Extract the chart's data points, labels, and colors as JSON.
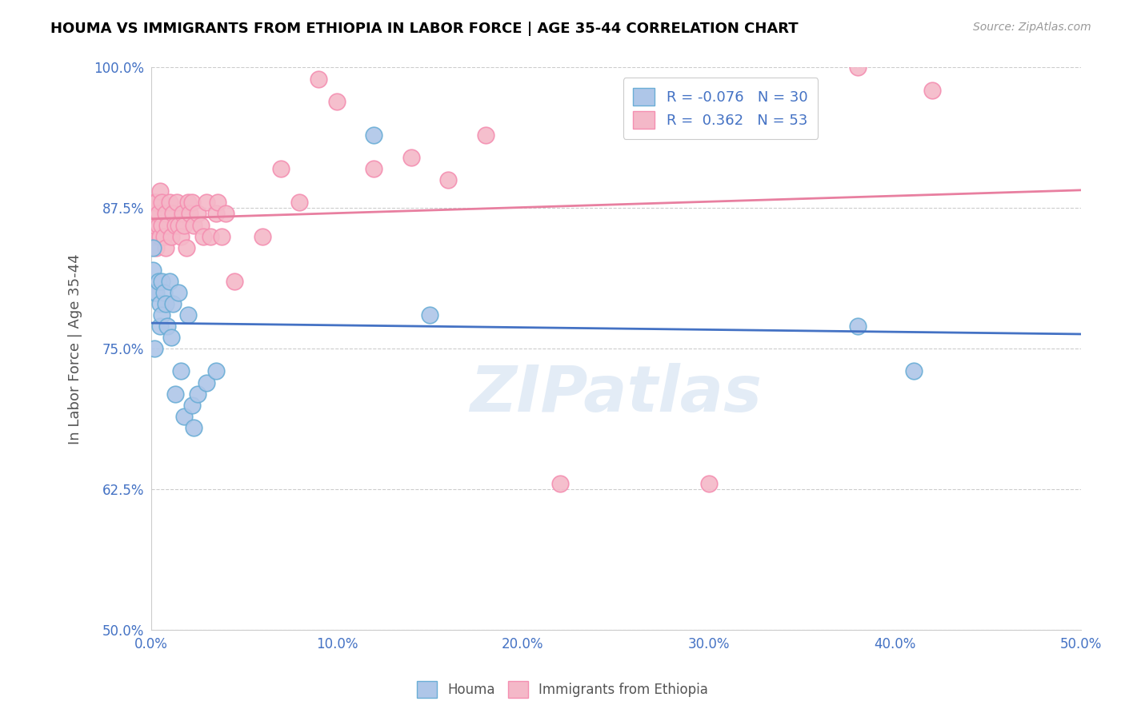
{
  "title": "HOUMA VS IMMIGRANTS FROM ETHIOPIA IN LABOR FORCE | AGE 35-44 CORRELATION CHART",
  "source": "Source: ZipAtlas.com",
  "ylabel": "In Labor Force | Age 35-44",
  "xmin": 0.0,
  "xmax": 0.5,
  "ymin": 0.5,
  "ymax": 1.0,
  "xticks": [
    0.0,
    0.1,
    0.2,
    0.3,
    0.4,
    0.5
  ],
  "xtick_labels": [
    "0.0%",
    "10.0%",
    "20.0%",
    "30.0%",
    "40.0%",
    "50.0%"
  ],
  "yticks": [
    0.5,
    0.625,
    0.75,
    0.875,
    1.0
  ],
  "ytick_labels": [
    "50.0%",
    "62.5%",
    "75.0%",
    "87.5%",
    "100.0%"
  ],
  "houma_color": "#aec6e8",
  "ethiopia_color": "#f4b8c8",
  "houma_edge": "#6baed6",
  "ethiopia_edge": "#f48fb1",
  "trend_houma_color": "#4472c4",
  "trend_ethiopia_color": "#e87fa0",
  "R_houma": -0.076,
  "N_houma": 30,
  "R_ethiopia": 0.362,
  "N_ethiopia": 53,
  "watermark": "ZIPatlas",
  "houma_x": [
    0.001,
    0.001,
    0.002,
    0.003,
    0.004,
    0.005,
    0.005,
    0.006,
    0.006,
    0.007,
    0.008,
    0.009,
    0.01,
    0.011,
    0.012,
    0.013,
    0.015,
    0.016,
    0.018,
    0.02,
    0.022,
    0.023,
    0.025,
    0.03,
    0.035,
    0.12,
    0.15,
    0.38,
    0.41,
    0.002
  ],
  "houma_y": [
    0.84,
    0.82,
    0.8,
    0.8,
    0.81,
    0.77,
    0.79,
    0.78,
    0.81,
    0.8,
    0.79,
    0.77,
    0.81,
    0.76,
    0.79,
    0.71,
    0.8,
    0.73,
    0.69,
    0.78,
    0.7,
    0.68,
    0.71,
    0.72,
    0.73,
    0.94,
    0.78,
    0.77,
    0.73,
    0.75
  ],
  "ethiopia_x": [
    0.001,
    0.001,
    0.002,
    0.002,
    0.003,
    0.003,
    0.004,
    0.004,
    0.005,
    0.005,
    0.006,
    0.006,
    0.007,
    0.008,
    0.008,
    0.009,
    0.01,
    0.011,
    0.012,
    0.013,
    0.014,
    0.015,
    0.016,
    0.017,
    0.018,
    0.019,
    0.02,
    0.021,
    0.022,
    0.023,
    0.025,
    0.027,
    0.028,
    0.03,
    0.032,
    0.035,
    0.036,
    0.038,
    0.04,
    0.045,
    0.06,
    0.07,
    0.08,
    0.09,
    0.1,
    0.12,
    0.14,
    0.16,
    0.18,
    0.22,
    0.3,
    0.38,
    0.42
  ],
  "ethiopia_y": [
    0.87,
    0.85,
    0.88,
    0.86,
    0.84,
    0.88,
    0.86,
    0.87,
    0.85,
    0.89,
    0.88,
    0.86,
    0.85,
    0.87,
    0.84,
    0.86,
    0.88,
    0.85,
    0.87,
    0.86,
    0.88,
    0.86,
    0.85,
    0.87,
    0.86,
    0.84,
    0.88,
    0.87,
    0.88,
    0.86,
    0.87,
    0.86,
    0.85,
    0.88,
    0.85,
    0.87,
    0.88,
    0.85,
    0.87,
    0.81,
    0.85,
    0.91,
    0.88,
    0.99,
    0.97,
    0.91,
    0.92,
    0.9,
    0.94,
    0.63,
    0.63,
    1.0,
    0.98
  ]
}
